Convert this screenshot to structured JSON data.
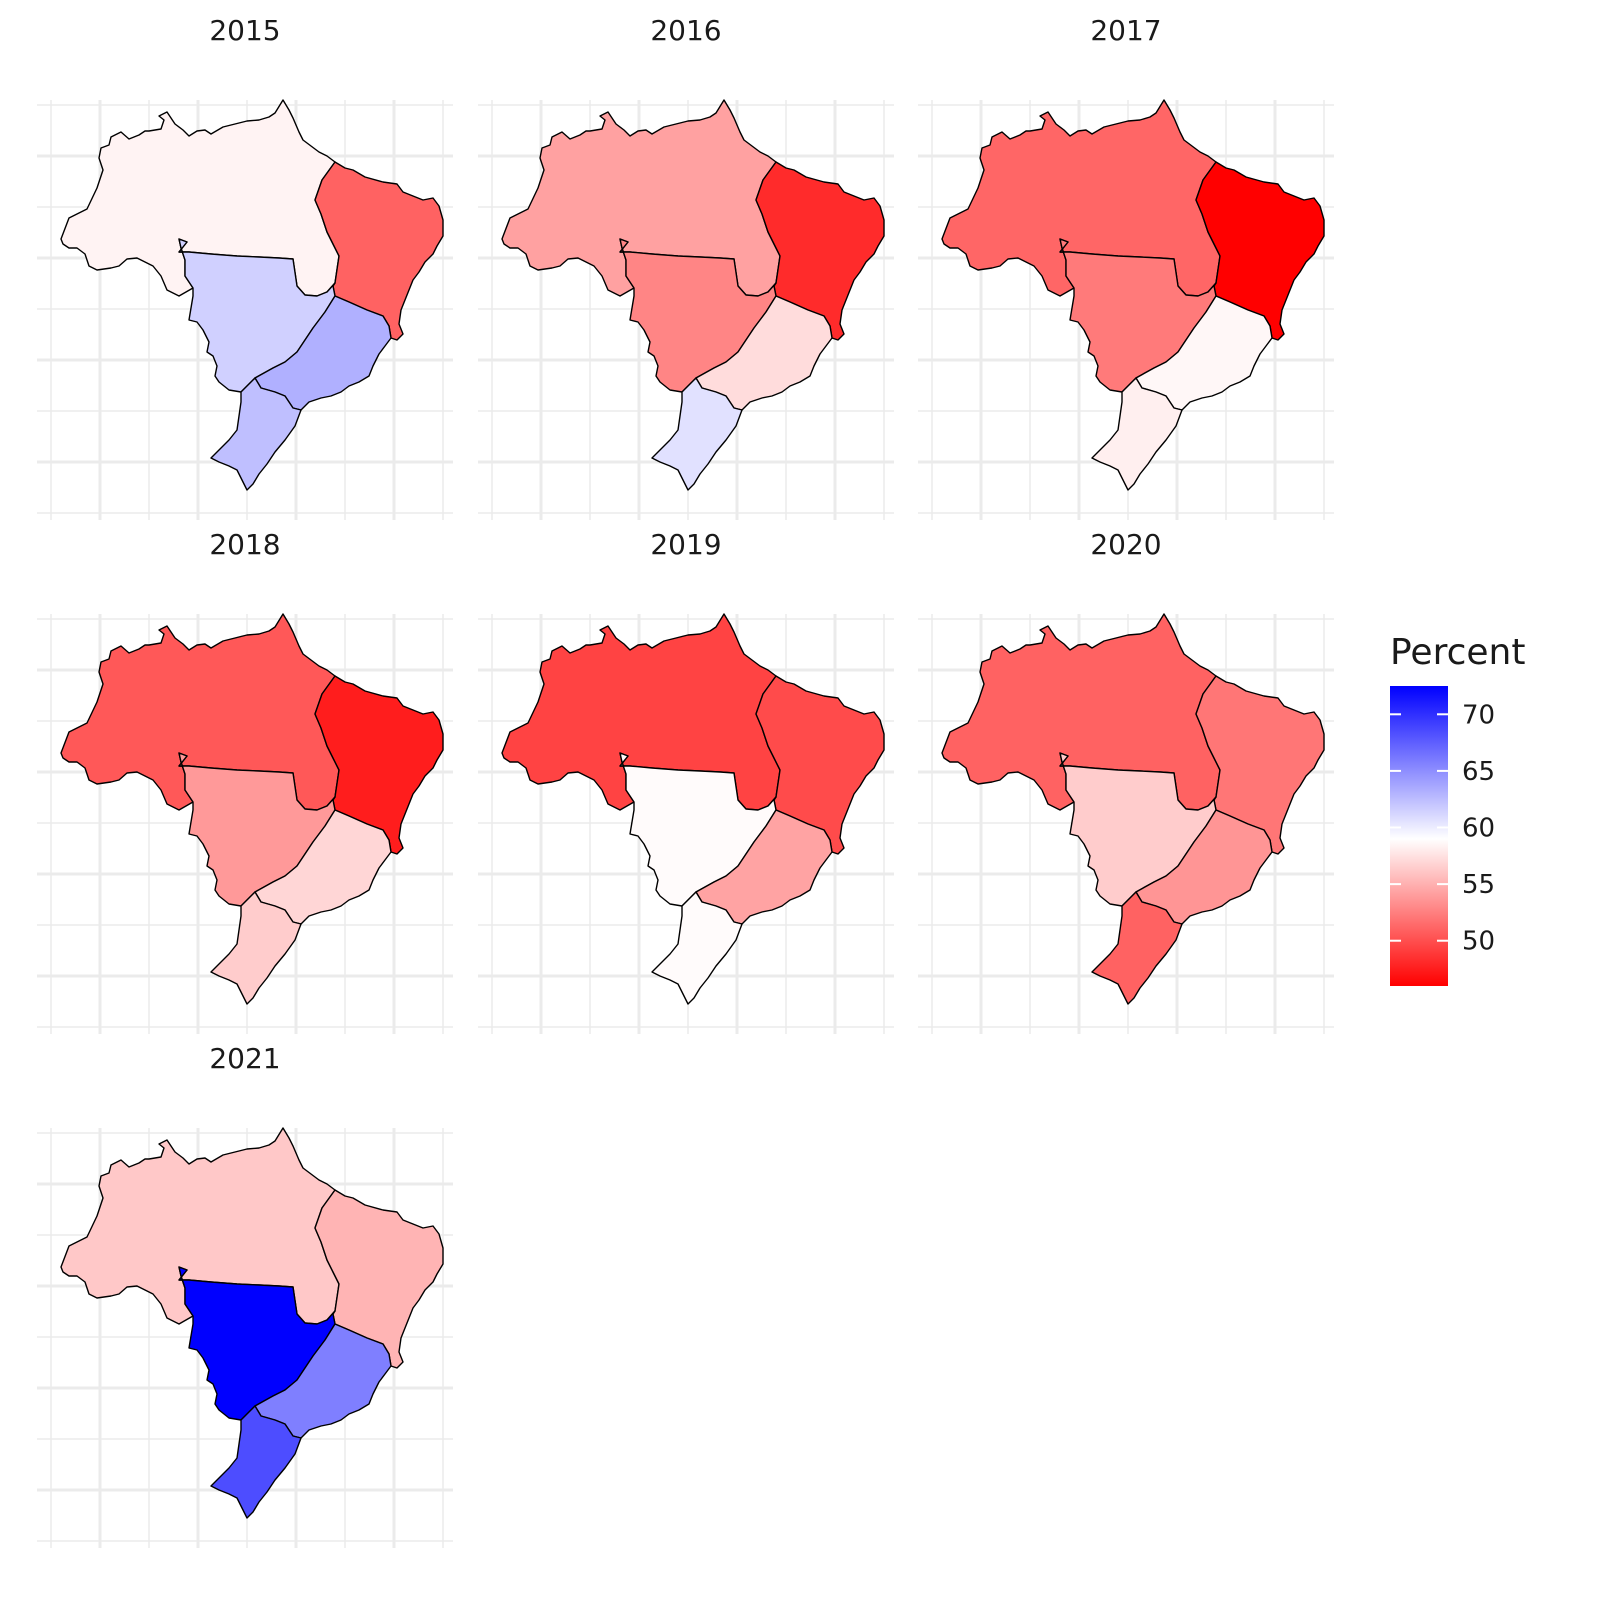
{
  "chart_data": {
    "type": "choropleth-facets",
    "regions": [
      "North",
      "Northeast",
      "Central-West",
      "Southeast",
      "South"
    ],
    "panels": [
      {
        "year": "2015",
        "values": {
          "North": 58.4,
          "Northeast": 51.0,
          "Central-West": 61.5,
          "Southeast": 63.2,
          "South": 62.4
        }
      },
      {
        "year": "2016",
        "values": {
          "North": 54.2,
          "Northeast": 48.2,
          "Central-West": 52.8,
          "Southeast": 57.2,
          "South": 60.6
        }
      },
      {
        "year": "2017",
        "values": {
          "North": 51.2,
          "Northeast": 46.0,
          "Central-West": 52.2,
          "Southeast": 58.6,
          "South": 58.2
        }
      },
      {
        "year": "2018",
        "values": {
          "North": 50.5,
          "Northeast": 47.5,
          "Central-West": 53.8,
          "Southeast": 56.9,
          "South": 56.4
        }
      },
      {
        "year": "2019",
        "values": {
          "North": 49.4,
          "Northeast": 49.8,
          "Central-West": 58.8,
          "Southeast": 54.3,
          "South": 58.8
        }
      },
      {
        "year": "2020",
        "values": {
          "North": 51.0,
          "Northeast": 52.0,
          "Central-West": 56.4,
          "Southeast": 53.6,
          "South": 51.0
        }
      },
      {
        "year": "2021",
        "values": {
          "North": 56.2,
          "Northeast": 55.2,
          "Central-West": 72.5,
          "Southeast": 65.8,
          "South": 68.4
        }
      }
    ],
    "legend": {
      "title": "Percent",
      "ticks": [
        50,
        55,
        60,
        65,
        70
      ],
      "range": [
        46,
        72.5
      ],
      "low_color": "#ff0000",
      "mid_color": "#ffffff",
      "high_color": "#0000ff",
      "midpoint": 59
    },
    "grid": true,
    "legend_position": "right"
  }
}
